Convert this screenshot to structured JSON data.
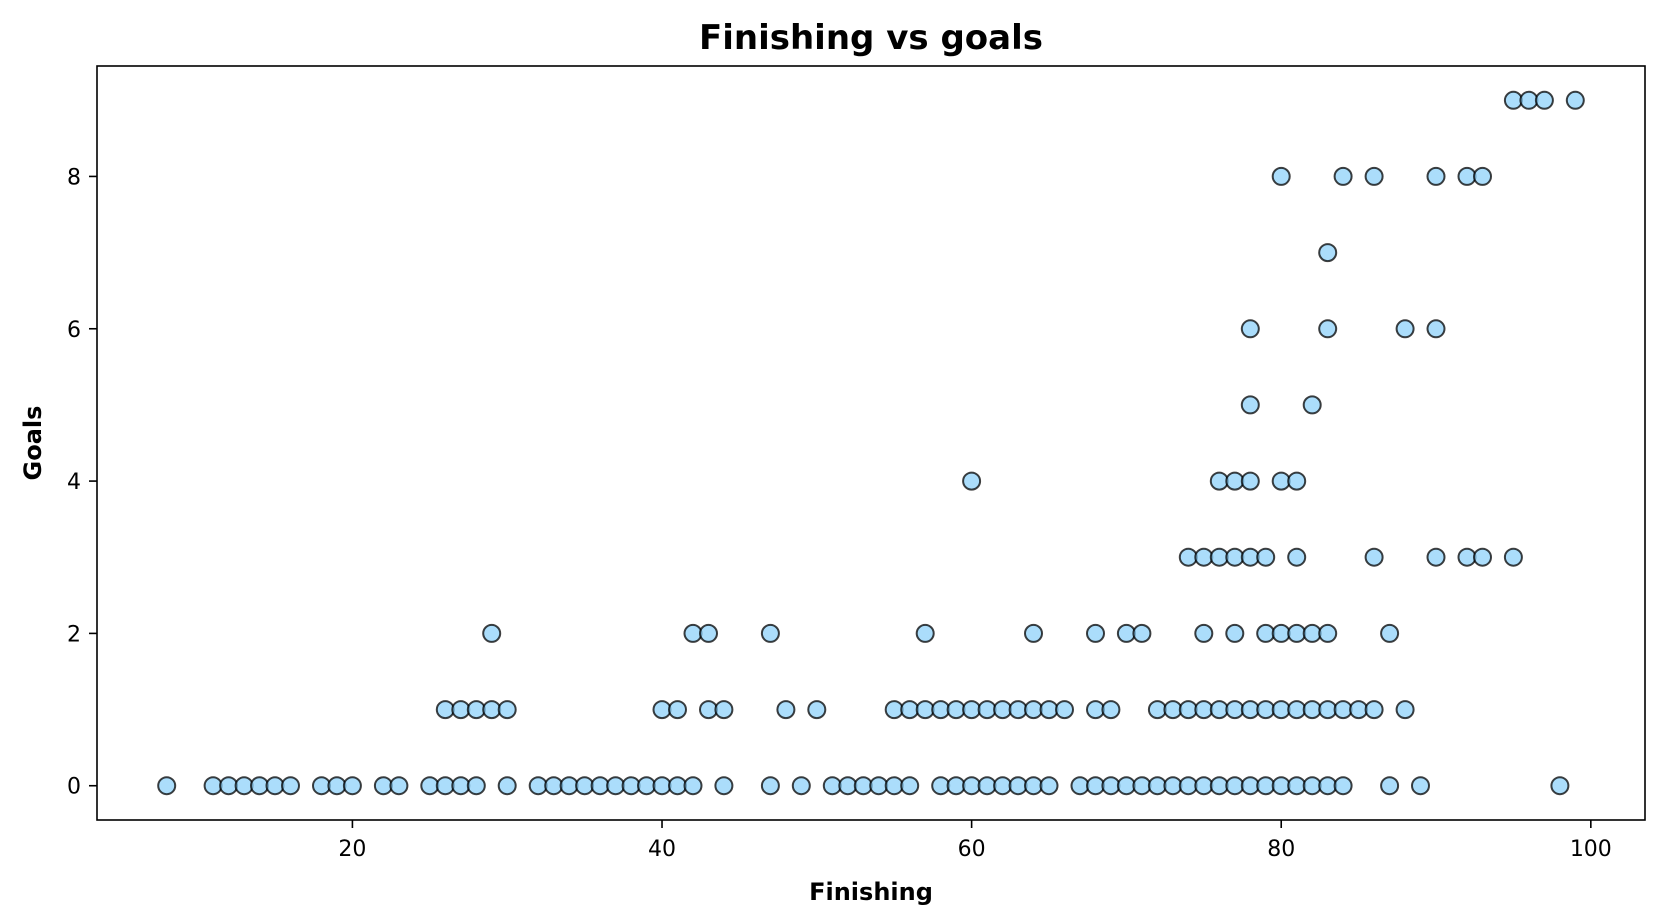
{
  "chart_data": {
    "type": "scatter",
    "title": "Finishing vs goals",
    "xlabel": "Finishing",
    "ylabel": "Goals",
    "xlim": [
      3.5,
      103.5
    ],
    "ylim": [
      -0.45,
      9.45
    ],
    "xticks": [
      20,
      40,
      60,
      80,
      100
    ],
    "yticks": [
      0,
      2,
      4,
      6,
      8
    ],
    "grid": false,
    "marker_color": "#87CEFA",
    "edge_color": "#000000",
    "series": [
      {
        "points": [
          [
            8,
            0
          ],
          [
            11,
            0
          ],
          [
            12,
            0
          ],
          [
            13,
            0
          ],
          [
            14,
            0
          ],
          [
            15,
            0
          ],
          [
            16,
            0
          ],
          [
            18,
            0
          ],
          [
            19,
            0
          ],
          [
            20,
            0
          ],
          [
            22,
            0
          ],
          [
            23,
            0
          ],
          [
            25,
            0
          ],
          [
            26,
            0
          ],
          [
            27,
            0
          ],
          [
            28,
            0
          ],
          [
            30,
            0
          ],
          [
            32,
            0
          ],
          [
            33,
            0
          ],
          [
            34,
            0
          ],
          [
            35,
            0
          ],
          [
            36,
            0
          ],
          [
            37,
            0
          ],
          [
            38,
            0
          ],
          [
            39,
            0
          ],
          [
            40,
            0
          ],
          [
            41,
            0
          ],
          [
            42,
            0
          ],
          [
            44,
            0
          ],
          [
            47,
            0
          ],
          [
            49,
            0
          ],
          [
            51,
            0
          ],
          [
            52,
            0
          ],
          [
            53,
            0
          ],
          [
            54,
            0
          ],
          [
            55,
            0
          ],
          [
            56,
            0
          ],
          [
            58,
            0
          ],
          [
            59,
            0
          ],
          [
            60,
            0
          ],
          [
            61,
            0
          ],
          [
            62,
            0
          ],
          [
            63,
            0
          ],
          [
            64,
            0
          ],
          [
            65,
            0
          ],
          [
            67,
            0
          ],
          [
            68,
            0
          ],
          [
            69,
            0
          ],
          [
            70,
            0
          ],
          [
            71,
            0
          ],
          [
            72,
            0
          ],
          [
            73,
            0
          ],
          [
            74,
            0
          ],
          [
            75,
            0
          ],
          [
            76,
            0
          ],
          [
            77,
            0
          ],
          [
            78,
            0
          ],
          [
            79,
            0
          ],
          [
            80,
            0
          ],
          [
            81,
            0
          ],
          [
            82,
            0
          ],
          [
            83,
            0
          ],
          [
            84,
            0
          ],
          [
            87,
            0
          ],
          [
            89,
            0
          ],
          [
            98,
            0
          ],
          [
            26,
            1
          ],
          [
            27,
            1
          ],
          [
            28,
            1
          ],
          [
            29,
            1
          ],
          [
            30,
            1
          ],
          [
            40,
            1
          ],
          [
            41,
            1
          ],
          [
            43,
            1
          ],
          [
            44,
            1
          ],
          [
            48,
            1
          ],
          [
            50,
            1
          ],
          [
            55,
            1
          ],
          [
            56,
            1
          ],
          [
            57,
            1
          ],
          [
            58,
            1
          ],
          [
            59,
            1
          ],
          [
            60,
            1
          ],
          [
            61,
            1
          ],
          [
            62,
            1
          ],
          [
            63,
            1
          ],
          [
            64,
            1
          ],
          [
            65,
            1
          ],
          [
            66,
            1
          ],
          [
            68,
            1
          ],
          [
            69,
            1
          ],
          [
            72,
            1
          ],
          [
            73,
            1
          ],
          [
            74,
            1
          ],
          [
            75,
            1
          ],
          [
            76,
            1
          ],
          [
            77,
            1
          ],
          [
            78,
            1
          ],
          [
            79,
            1
          ],
          [
            80,
            1
          ],
          [
            81,
            1
          ],
          [
            82,
            1
          ],
          [
            83,
            1
          ],
          [
            84,
            1
          ],
          [
            85,
            1
          ],
          [
            86,
            1
          ],
          [
            88,
            1
          ],
          [
            29,
            2
          ],
          [
            42,
            2
          ],
          [
            43,
            2
          ],
          [
            47,
            2
          ],
          [
            57,
            2
          ],
          [
            64,
            2
          ],
          [
            68,
            2
          ],
          [
            70,
            2
          ],
          [
            71,
            2
          ],
          [
            75,
            2
          ],
          [
            77,
            2
          ],
          [
            79,
            2
          ],
          [
            80,
            2
          ],
          [
            81,
            2
          ],
          [
            82,
            2
          ],
          [
            83,
            2
          ],
          [
            87,
            2
          ],
          [
            74,
            3
          ],
          [
            75,
            3
          ],
          [
            76,
            3
          ],
          [
            77,
            3
          ],
          [
            78,
            3
          ],
          [
            79,
            3
          ],
          [
            81,
            3
          ],
          [
            86,
            3
          ],
          [
            90,
            3
          ],
          [
            92,
            3
          ],
          [
            93,
            3
          ],
          [
            95,
            3
          ],
          [
            60,
            4
          ],
          [
            76,
            4
          ],
          [
            77,
            4
          ],
          [
            78,
            4
          ],
          [
            80,
            4
          ],
          [
            81,
            4
          ],
          [
            78,
            5
          ],
          [
            82,
            5
          ],
          [
            78,
            6
          ],
          [
            83,
            6
          ],
          [
            88,
            6
          ],
          [
            90,
            6
          ],
          [
            83,
            7
          ],
          [
            80,
            8
          ],
          [
            84,
            8
          ],
          [
            86,
            8
          ],
          [
            90,
            8
          ],
          [
            92,
            8
          ],
          [
            93,
            8
          ],
          [
            95,
            9
          ],
          [
            96,
            9
          ],
          [
            97,
            9
          ],
          [
            99,
            9
          ]
        ]
      }
    ]
  }
}
